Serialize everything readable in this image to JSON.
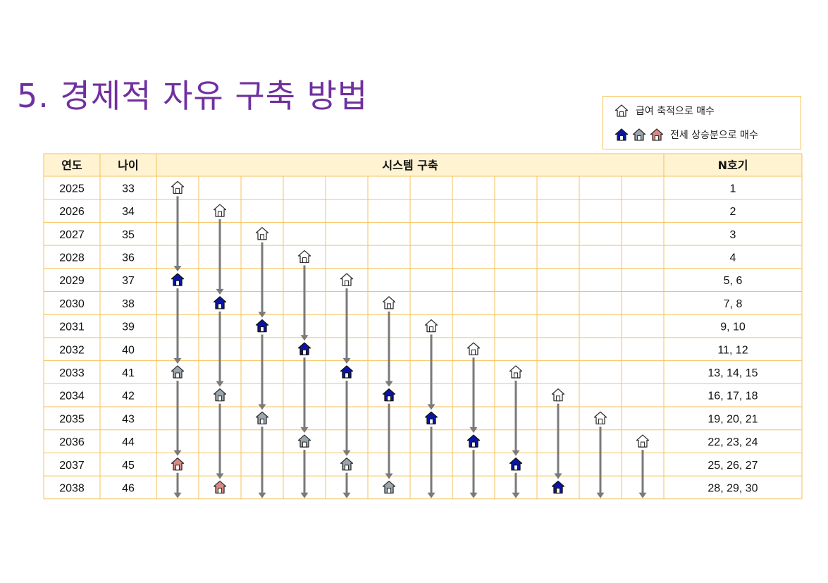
{
  "title": "5. 경제적 자유 구축 방법",
  "legend": {
    "salary_label": "급여 축적으로 매수",
    "jeonse_label": "전세 상승분으로 매수"
  },
  "colors": {
    "grid": "#f6c25a",
    "header_bg": "#fff3d2",
    "arrow": "#7a7a7a",
    "house_white": "#ffffff",
    "house_blue": "#0a14a8",
    "house_gray": "#9aa6ad",
    "house_pink": "#d98882",
    "title": "#7030a0"
  },
  "table": {
    "headers": {
      "year": "연도",
      "age": "나이",
      "system": "시스템 구축",
      "nth": "N호기"
    },
    "rows": [
      {
        "year": "2025",
        "age": "33",
        "nth": "1"
      },
      {
        "year": "2026",
        "age": "34",
        "nth": "2"
      },
      {
        "year": "2027",
        "age": "35",
        "nth": "3"
      },
      {
        "year": "2028",
        "age": "36",
        "nth": "4"
      },
      {
        "year": "2029",
        "age": "37",
        "nth": "5, 6"
      },
      {
        "year": "2030",
        "age": "38",
        "nth": "7, 8"
      },
      {
        "year": "2031",
        "age": "39",
        "nth": "9, 10"
      },
      {
        "year": "2032",
        "age": "40",
        "nth": "11, 12"
      },
      {
        "year": "2033",
        "age": "41",
        "nth": "13, 14, 15"
      },
      {
        "year": "2034",
        "age": "42",
        "nth": "16, 17, 18"
      },
      {
        "year": "2035",
        "age": "43",
        "nth": "19, 20, 21"
      },
      {
        "year": "2036",
        "age": "44",
        "nth": "22, 23, 24"
      },
      {
        "year": "2037",
        "age": "45",
        "nth": "25, 26, 27"
      },
      {
        "year": "2038",
        "age": "46",
        "nth": "28, 29, 30"
      }
    ],
    "system_columns": 12,
    "houses": [
      {
        "col": 0,
        "row": 0,
        "type": "white"
      },
      {
        "col": 0,
        "row": 4,
        "type": "blue"
      },
      {
        "col": 0,
        "row": 8,
        "type": "gray"
      },
      {
        "col": 0,
        "row": 12,
        "type": "pink"
      },
      {
        "col": 1,
        "row": 1,
        "type": "white"
      },
      {
        "col": 1,
        "row": 5,
        "type": "blue"
      },
      {
        "col": 1,
        "row": 9,
        "type": "gray"
      },
      {
        "col": 1,
        "row": 13,
        "type": "pink"
      },
      {
        "col": 2,
        "row": 2,
        "type": "white"
      },
      {
        "col": 2,
        "row": 6,
        "type": "blue"
      },
      {
        "col": 2,
        "row": 10,
        "type": "gray"
      },
      {
        "col": 3,
        "row": 3,
        "type": "white"
      },
      {
        "col": 3,
        "row": 7,
        "type": "blue"
      },
      {
        "col": 3,
        "row": 11,
        "type": "gray"
      },
      {
        "col": 4,
        "row": 4,
        "type": "white"
      },
      {
        "col": 4,
        "row": 8,
        "type": "blue"
      },
      {
        "col": 4,
        "row": 12,
        "type": "gray"
      },
      {
        "col": 5,
        "row": 5,
        "type": "white"
      },
      {
        "col": 5,
        "row": 9,
        "type": "blue"
      },
      {
        "col": 5,
        "row": 13,
        "type": "gray"
      },
      {
        "col": 6,
        "row": 6,
        "type": "white"
      },
      {
        "col": 6,
        "row": 10,
        "type": "blue"
      },
      {
        "col": 7,
        "row": 7,
        "type": "white"
      },
      {
        "col": 7,
        "row": 11,
        "type": "blue"
      },
      {
        "col": 8,
        "row": 8,
        "type": "white"
      },
      {
        "col": 8,
        "row": 12,
        "type": "blue"
      },
      {
        "col": 9,
        "row": 9,
        "type": "white"
      },
      {
        "col": 9,
        "row": 13,
        "type": "blue"
      },
      {
        "col": 10,
        "row": 10,
        "type": "white"
      },
      {
        "col": 11,
        "row": 11,
        "type": "white"
      }
    ]
  }
}
